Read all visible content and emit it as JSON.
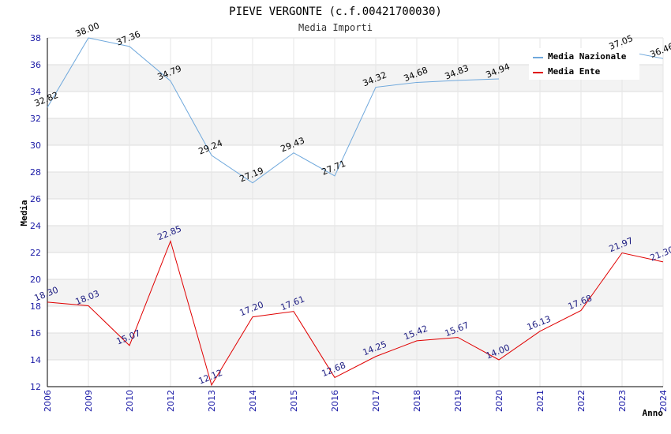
{
  "chart_data": {
    "type": "line",
    "title": "PIEVE VERGONTE (c.f.00421700030)",
    "subtitle": "Media Importi",
    "xlabel": "Anno",
    "ylabel": "Media",
    "ylim": [
      12,
      38
    ],
    "yticks": [
      12,
      14,
      16,
      18,
      20,
      22,
      24,
      26,
      28,
      30,
      32,
      34,
      36,
      38
    ],
    "grid": true,
    "legend_position": "top-right",
    "categories": [
      "2006",
      "2009",
      "2010",
      "2012",
      "2013",
      "2014",
      "2015",
      "2016",
      "2017",
      "2018",
      "2019",
      "2020",
      "2021",
      "2022",
      "2023",
      "2024"
    ],
    "series": [
      {
        "name": "Media Nazionale",
        "color": "#6fa8dc",
        "values": [
          32.82,
          38.0,
          37.36,
          34.79,
          29.24,
          27.19,
          29.43,
          27.71,
          34.32,
          34.68,
          34.83,
          34.94,
          null,
          null,
          37.05,
          36.46
        ],
        "labels": [
          "32.82",
          "38.00",
          "37.36",
          "34.79",
          "29.24",
          "27.19",
          "29.43",
          "27.71",
          "34.32",
          "34.68",
          "34.83",
          "34.94",
          "",
          "",
          "37.05",
          "36.46"
        ]
      },
      {
        "name": "Media Ente",
        "color": "#e00000",
        "values": [
          18.3,
          18.03,
          15.07,
          22.85,
          12.12,
          17.2,
          17.61,
          12.68,
          14.25,
          15.42,
          15.67,
          14.0,
          16.13,
          17.68,
          21.97,
          21.3
        ],
        "labels": [
          "18.30",
          "18.03",
          "15.07",
          "22.85",
          "12.12",
          "17.20",
          "17.61",
          "12.68",
          "14.25",
          "15.42",
          "15.67",
          "14.00",
          "16.13",
          "17.68",
          "21.97",
          "21.30"
        ]
      }
    ]
  }
}
